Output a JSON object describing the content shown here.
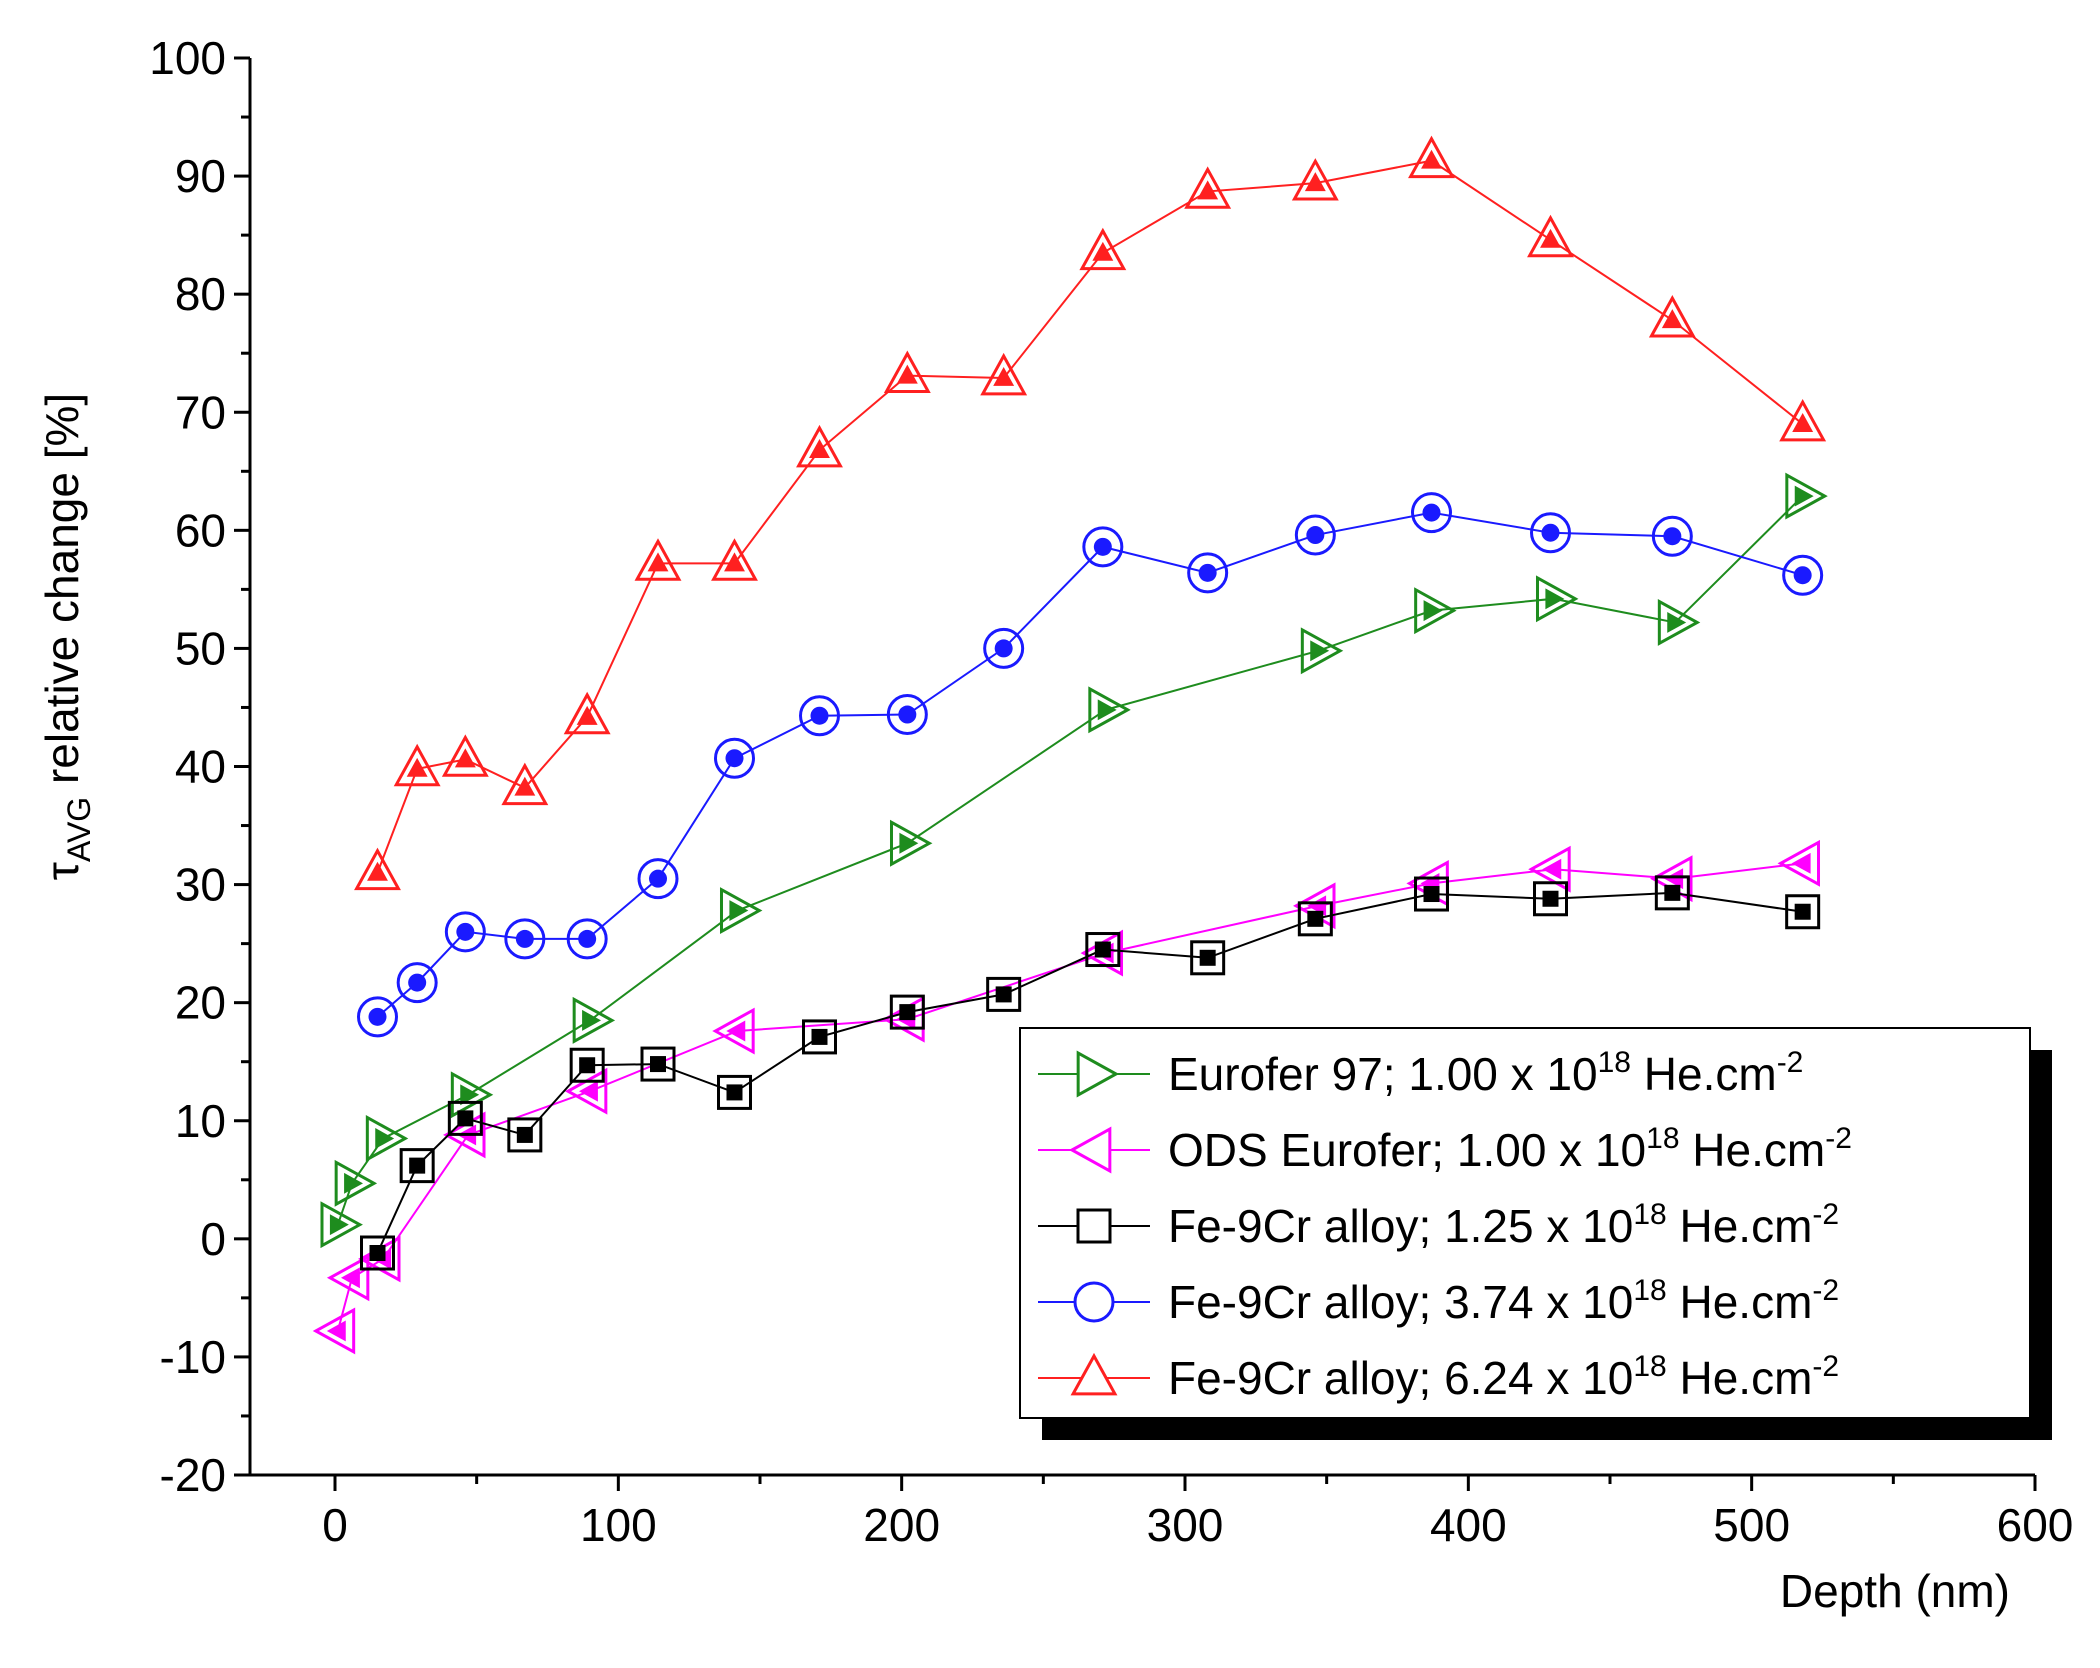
{
  "chart_data": {
    "type": "line",
    "title": "",
    "xlabel": "Depth (nm)",
    "ylabel": {
      "symbol": "τ",
      "subscript": "AVG",
      "rest": " relative change [%]"
    },
    "xlim": [
      -30,
      600
    ],
    "ylim": [
      -20,
      100
    ],
    "x_ticks": [
      0,
      100,
      200,
      300,
      400,
      500,
      600
    ],
    "y_ticks": [
      -20,
      -10,
      0,
      10,
      20,
      30,
      40,
      50,
      60,
      70,
      80,
      90,
      100
    ],
    "x_tick_labels": [
      "0",
      "100",
      "200",
      "300",
      "400",
      "500",
      "600"
    ],
    "y_tick_labels": [
      "-20",
      "-10",
      "0",
      "10",
      "20",
      "30",
      "40",
      "50",
      "60",
      "70",
      "80",
      "90",
      "100"
    ],
    "legend_position": "bottom-right",
    "series": [
      {
        "name": "Eurofer 97; 1.00 x 10¹⁸ He.cm⁻²",
        "legend": {
          "prefix": "Eurofer 97; 1.00 x 10",
          "exp": "18",
          "unit": " He.cm",
          "exp2": "-2"
        },
        "color": "#1e8c1e",
        "marker": "triangle-right",
        "x": [
          1,
          6,
          17,
          47,
          90,
          142,
          202,
          272,
          347,
          387,
          430,
          473,
          518
        ],
        "y": [
          1.2,
          4.7,
          8.5,
          12.2,
          18.5,
          27.8,
          33.5,
          44.8,
          49.8,
          53.2,
          54.2,
          52.2,
          62.9
        ]
      },
      {
        "name": "ODS Eurofer; 1.00 x 10¹⁸ He.cm⁻²",
        "legend": {
          "prefix": "ODS Eurofer; 1.00 x 10",
          "exp": "18",
          "unit": " He.cm",
          "exp2": "-2"
        },
        "color": "#ff00ff",
        "marker": "triangle-left",
        "x": [
          1,
          6,
          17,
          47,
          90,
          142,
          202,
          272,
          347,
          387,
          430,
          473,
          518
        ],
        "y": [
          -7.8,
          -3.3,
          -1.7,
          8.8,
          12.5,
          17.6,
          18.6,
          24.2,
          28.2,
          30.1,
          31.3,
          30.5,
          31.8
        ]
      },
      {
        "name": "Fe-9Cr alloy; 1.25 x 10¹⁸ He.cm⁻²",
        "legend": {
          "prefix": "Fe-9Cr alloy; 1.25 x 10",
          "exp": "18",
          "unit": " He.cm",
          "exp2": "-2"
        },
        "color": "#000000",
        "marker": "square",
        "x": [
          15,
          29,
          46,
          67,
          89,
          114,
          141,
          171,
          202,
          236,
          271,
          308,
          346,
          387,
          429,
          472,
          518
        ],
        "y": [
          -1.2,
          6.2,
          10.2,
          8.8,
          14.7,
          14.8,
          12.4,
          17.1,
          19.2,
          20.7,
          24.5,
          23.8,
          27.1,
          29.2,
          28.8,
          29.3,
          27.7
        ]
      },
      {
        "name": "Fe-9Cr alloy; 3.74 x 10¹⁸ He.cm⁻²",
        "legend": {
          "prefix": "Fe-9Cr alloy; 3.74 x 10",
          "exp": "18",
          "unit": " He.cm",
          "exp2": "-2"
        },
        "color": "#1a1aff",
        "marker": "circle",
        "x": [
          15,
          29,
          46,
          67,
          89,
          114,
          141,
          171,
          202,
          236,
          271,
          308,
          346,
          387,
          429,
          472,
          518
        ],
        "y": [
          18.8,
          21.7,
          26.0,
          25.4,
          25.4,
          30.5,
          40.7,
          44.3,
          44.4,
          50.0,
          58.6,
          56.4,
          59.6,
          61.5,
          59.8,
          59.5,
          56.2
        ]
      },
      {
        "name": "Fe-9Cr alloy; 6.24 x 10¹⁸ He.cm⁻²",
        "legend": {
          "prefix": "Fe-9Cr alloy; 6.24 x 10",
          "exp": "18",
          "unit": " He.cm",
          "exp2": "-2"
        },
        "color": "#ff2020",
        "marker": "triangle-up",
        "x": [
          15,
          29,
          46,
          67,
          89,
          114,
          141,
          171,
          202,
          236,
          271,
          308,
          346,
          387,
          429,
          472,
          518
        ],
        "y": [
          31.0,
          39.8,
          40.6,
          38.2,
          44.2,
          57.2,
          57.2,
          66.8,
          73.1,
          72.9,
          83.5,
          88.7,
          89.4,
          91.3,
          84.6,
          77.8,
          69.0
        ]
      }
    ]
  }
}
